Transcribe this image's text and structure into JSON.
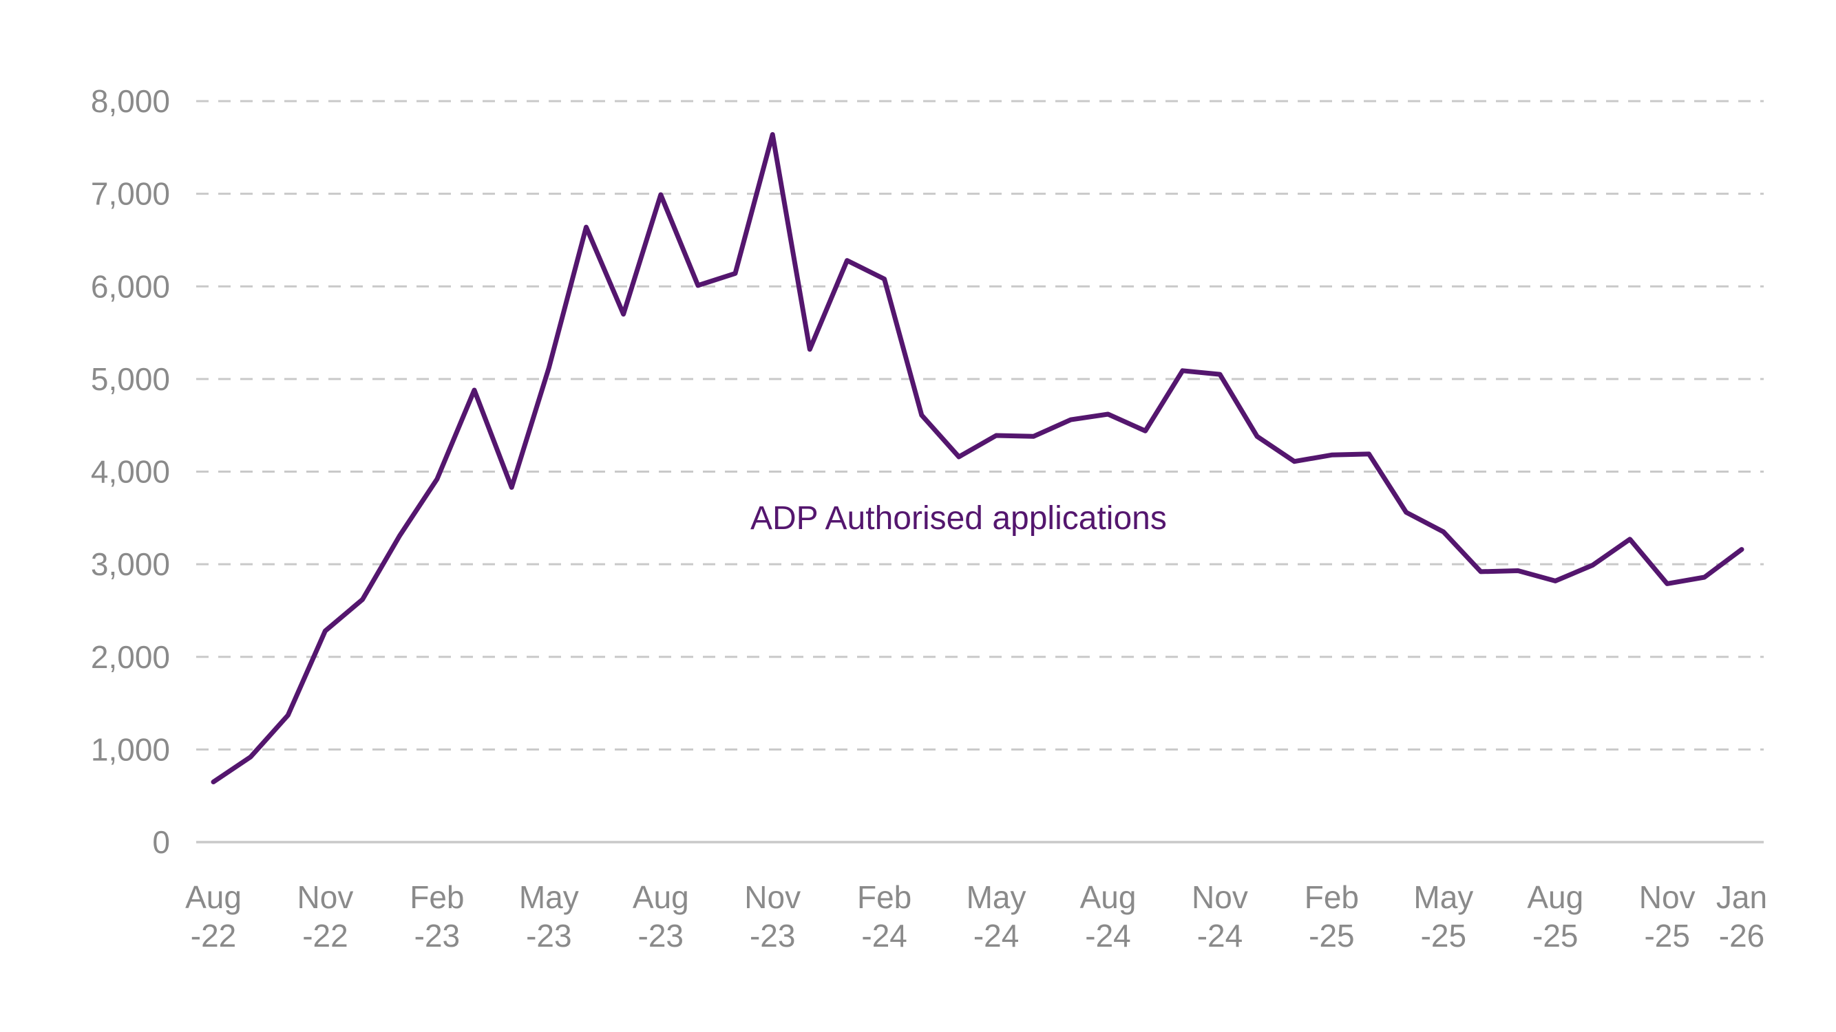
{
  "chart_data": {
    "type": "line",
    "title": "",
    "xlabel": "",
    "ylabel": "",
    "ylim": [
      0,
      8000
    ],
    "y_ticks": [
      "0",
      "1,000",
      "2,000",
      "3,000",
      "4,000",
      "5,000",
      "6,000",
      "7,000",
      "8,000"
    ],
    "y_tick_values": [
      0,
      1000,
      2000,
      3000,
      4000,
      5000,
      6000,
      7000,
      8000
    ],
    "grid": "horizontal dashed",
    "x": [
      "Aug-22",
      "Sep-22",
      "Oct-22",
      "Nov-22",
      "Dec-22",
      "Jan-23",
      "Feb-23",
      "Mar-23",
      "Apr-23",
      "May-23",
      "Jun-23",
      "Jul-23",
      "Aug-23",
      "Sep-23",
      "Oct-23",
      "Nov-23",
      "Dec-23",
      "Jan-24",
      "Feb-24",
      "Mar-24",
      "Apr-24",
      "May-24",
      "Jun-24",
      "Jul-24",
      "Aug-24",
      "Sep-24",
      "Oct-24",
      "Nov-24",
      "Dec-24",
      "Jan-25",
      "Feb-25",
      "Mar-25",
      "Apr-25",
      "May-25",
      "Jun-25",
      "Jul-25",
      "Aug-25",
      "Sep-25",
      "Oct-25",
      "Nov-25",
      "Dec-25",
      "Jan-26"
    ],
    "x_tick_labels": [
      {
        "index": 0,
        "line1": "Aug",
        "line2": "-22"
      },
      {
        "index": 3,
        "line1": "Nov",
        "line2": "-22"
      },
      {
        "index": 6,
        "line1": "Feb",
        "line2": "-23"
      },
      {
        "index": 9,
        "line1": "May",
        "line2": "-23"
      },
      {
        "index": 12,
        "line1": "Aug",
        "line2": "-23"
      },
      {
        "index": 15,
        "line1": "Nov",
        "line2": "-23"
      },
      {
        "index": 18,
        "line1": "Feb",
        "line2": "-24"
      },
      {
        "index": 21,
        "line1": "May",
        "line2": "-24"
      },
      {
        "index": 24,
        "line1": "Aug",
        "line2": "-24"
      },
      {
        "index": 27,
        "line1": "Nov",
        "line2": "-24"
      },
      {
        "index": 30,
        "line1": "Feb",
        "line2": "-25"
      },
      {
        "index": 33,
        "line1": "May",
        "line2": "-25"
      },
      {
        "index": 36,
        "line1": "Aug",
        "line2": "-25"
      },
      {
        "index": 39,
        "line1": "Nov",
        "line2": "-25"
      },
      {
        "index": 41,
        "line1": "Jan",
        "line2": "-26"
      }
    ],
    "series": [
      {
        "name": "ADP Authorised applications",
        "color": "#54166e",
        "values": [
          650,
          920,
          1370,
          2280,
          2620,
          3310,
          3920,
          4880,
          3830,
          5120,
          6640,
          5700,
          6990,
          6010,
          6140,
          7640,
          5320,
          6280,
          6080,
          4610,
          4160,
          4390,
          4380,
          4560,
          4620,
          4440,
          5090,
          5050,
          4380,
          4110,
          4180,
          4190,
          3560,
          3350,
          2920,
          2930,
          2820,
          2990,
          3270,
          2790,
          2860,
          3160
        ]
      }
    ]
  }
}
